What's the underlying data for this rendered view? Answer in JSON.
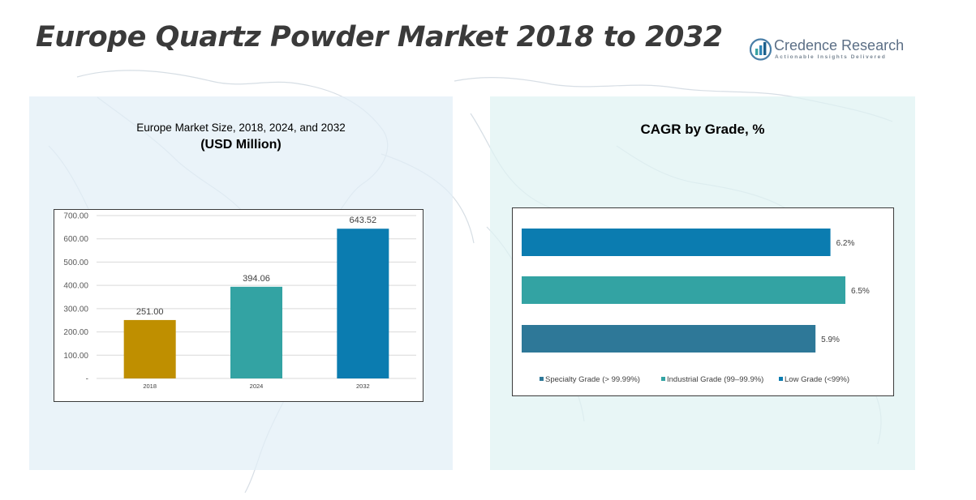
{
  "title": "Europe Quartz Powder Market 2018 to 2032",
  "brand": {
    "name": "Credence Research",
    "tagline": "Actionable Insights Delivered"
  },
  "left_panel": {
    "title_line1": "Europe Market Size, 2018, 2024, and 2032",
    "title_line2": "(USD Million)"
  },
  "right_panel": {
    "title": "CAGR by Grade, %"
  },
  "chart_data": [
    {
      "type": "bar",
      "title": "Europe Market Size, 2018, 2024, and 2032 (USD Million)",
      "categories": [
        "2018",
        "2024",
        "2032"
      ],
      "values": [
        251.0,
        394.06,
        643.52
      ],
      "data_labels": [
        "251.00",
        "394.06",
        "643.52"
      ],
      "colors": [
        "#bf8f00",
        "#33a3a3",
        "#0b7cb0"
      ],
      "ylim": [
        0,
        700
      ],
      "yticks": [
        0,
        100,
        200,
        300,
        400,
        500,
        600,
        700
      ],
      "ytick_labels": [
        "-",
        "100.00",
        "200.00",
        "300.00",
        "400.00",
        "500.00",
        "600.00",
        "700.00"
      ],
      "grid": true,
      "legend": "none"
    },
    {
      "type": "bar",
      "orientation": "horizontal",
      "title": "CAGR by Grade, %",
      "series": [
        {
          "name": "Low Grade (<99%)",
          "value": 6.2,
          "label": "6.2%",
          "color": "#0b7cb0"
        },
        {
          "name": "Industrial Grade (99–99.9%)",
          "value": 6.5,
          "label": "6.5%",
          "color": "#33a3a3"
        },
        {
          "name": "Specialty Grade (> 99.99%)",
          "value": 5.9,
          "label": "5.9%",
          "color": "#2e7898"
        }
      ],
      "legend_order": [
        "Specialty Grade (> 99.99%)",
        "Industrial Grade (99–99.9%)",
        "Low Grade (<99%)"
      ],
      "xlim": [
        0,
        6.5
      ],
      "grid": false,
      "legend": "bottom"
    }
  ]
}
